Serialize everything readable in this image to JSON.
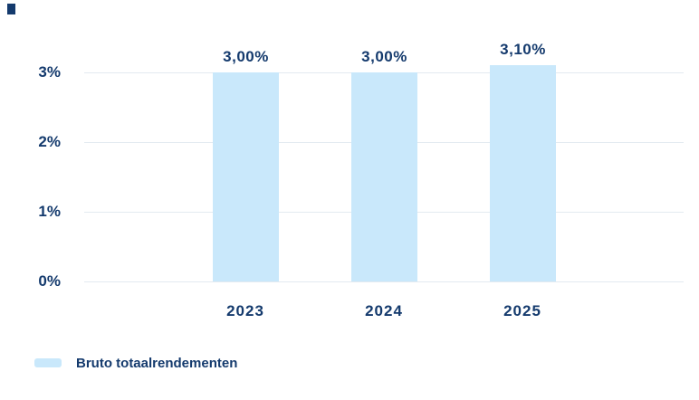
{
  "chart_data": {
    "type": "bar",
    "title": "",
    "xlabel": "",
    "ylabel": "",
    "categories": [
      "2023",
      "2024",
      "2025"
    ],
    "values": [
      3.0,
      3.0,
      3.1
    ],
    "value_labels": [
      "3,00%",
      "3,00%",
      "3,10%"
    ],
    "yticks": [
      3,
      2,
      1,
      0
    ],
    "ytick_labels": [
      "3%",
      "2%",
      "1%",
      "0%"
    ],
    "ylim": [
      0,
      3.5
    ],
    "grid": true,
    "legend": {
      "position": "bottom-left",
      "entries": [
        {
          "label": "Bruto totaalrendementen",
          "color": "#c9e8fb"
        }
      ]
    },
    "colors": {
      "bar": "#c9e8fb",
      "text": "#143a6d",
      "gridline": "#e3eaf0",
      "background": "#ffffff"
    }
  }
}
